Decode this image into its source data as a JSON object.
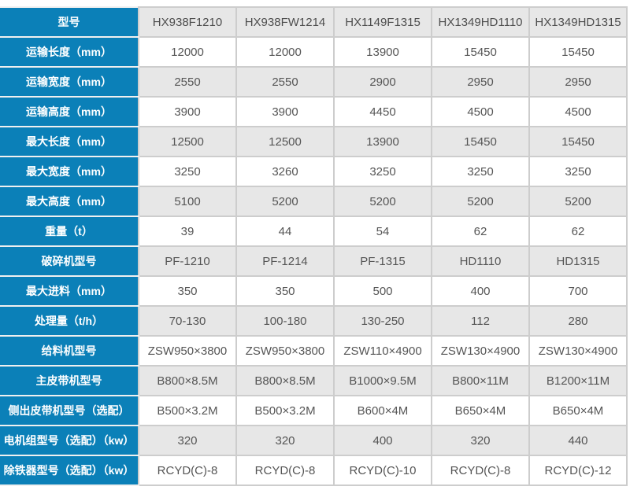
{
  "colors": {
    "accent_blue": "#0b80b8",
    "alt_row_gray": "#e7e7e7",
    "grid_line": "#cdcdcd",
    "label_text": "#ffffff",
    "value_text": "#555555"
  },
  "table": {
    "header": {
      "label": "型号",
      "models": [
        "HX938F1210",
        "HX938FW1214",
        "HX1149F1315",
        "HX1349HD1110",
        "HX1349HD1315"
      ]
    },
    "rows": [
      {
        "label": "运输长度（mm）",
        "values": [
          "12000",
          "12000",
          "13900",
          "15450",
          "15450"
        ]
      },
      {
        "label": "运输宽度（mm）",
        "values": [
          "2550",
          "2550",
          "2900",
          "2950",
          "2950"
        ]
      },
      {
        "label": "运输高度（mm）",
        "values": [
          "3900",
          "3900",
          "4450",
          "4500",
          "4500"
        ]
      },
      {
        "label": "最大长度（mm）",
        "values": [
          "12500",
          "12500",
          "13900",
          "15450",
          "15450"
        ]
      },
      {
        "label": "最大宽度（mm）",
        "values": [
          "3250",
          "3260",
          "3250",
          "3250",
          "3250"
        ]
      },
      {
        "label": "最大高度（mm）",
        "values": [
          "5100",
          "5200",
          "5200",
          "5200",
          "5200"
        ]
      },
      {
        "label": "重量（t）",
        "values": [
          "39",
          "44",
          "54",
          "62",
          "62"
        ]
      },
      {
        "label": "破碎机型号",
        "values": [
          "PF-1210",
          "PF-1214",
          "PF-1315",
          "HD1110",
          "HD1315"
        ]
      },
      {
        "label": "最大进料（mm）",
        "values": [
          "350",
          "350",
          "500",
          "400",
          "700"
        ]
      },
      {
        "label": "处理量（t/h）",
        "values": [
          "70-130",
          "100-180",
          "130-250",
          "112",
          "280"
        ]
      },
      {
        "label": "给料机型号",
        "values": [
          "ZSW950×3800",
          "ZSW950×3800",
          "ZSW110×4900",
          "ZSW130×4900",
          "ZSW130×4900"
        ]
      },
      {
        "label": "主皮带机型号",
        "values": [
          "B800×8.5M",
          "B800×8.5M",
          "B1000×9.5M",
          "B800×11M",
          "B1200×11M"
        ]
      },
      {
        "label": "侧出皮带机型号（选配）",
        "values": [
          "B500×3.2M",
          "B500×3.2M",
          "B600×4M",
          "B650×4M",
          "B650×4M"
        ]
      },
      {
        "label": "电机组型号（选配）（kw）",
        "values": [
          "320",
          "320",
          "400",
          "320",
          "440"
        ]
      },
      {
        "label": "除铁器型号（选配）（kw）",
        "values": [
          "RCYD(C)-8",
          "RCYD(C)-8",
          "RCYD(C)-10",
          "RCYD(C)-8",
          "RCYD(C)-12"
        ]
      }
    ]
  }
}
